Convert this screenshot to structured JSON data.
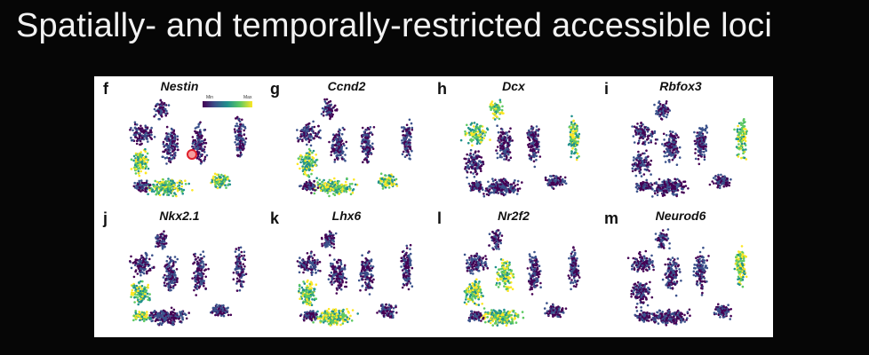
{
  "slide": {
    "title": "Spatially- and temporally-restricted accessible loci"
  },
  "colorbar": {
    "min_label": "Min",
    "max_label": "Max",
    "colors": [
      "#440154",
      "#3b528b",
      "#21918c",
      "#5ec962",
      "#fde725"
    ]
  },
  "panels": [
    {
      "letter": "f",
      "gene": "Nestin",
      "high_regions": [
        "bottom",
        "left",
        "right-island"
      ]
    },
    {
      "letter": "g",
      "gene": "Ccnd2",
      "high_regions": [
        "bottom",
        "left",
        "right-island"
      ]
    },
    {
      "letter": "h",
      "gene": "Dcx",
      "high_regions": [
        "top",
        "right-arm",
        "upper-left"
      ]
    },
    {
      "letter": "i",
      "gene": "Rbfox3",
      "high_regions": [
        "right-arm"
      ]
    },
    {
      "letter": "j",
      "gene": "Nkx2.1",
      "high_regions": [
        "left",
        "bottom-left"
      ]
    },
    {
      "letter": "k",
      "gene": "Lhx6",
      "high_regions": [
        "left",
        "bottom"
      ]
    },
    {
      "letter": "l",
      "gene": "Nr2f2",
      "high_regions": [
        "left",
        "center",
        "bottom"
      ]
    },
    {
      "letter": "m",
      "gene": "Neurod6",
      "high_regions": [
        "right-arm"
      ]
    }
  ]
}
